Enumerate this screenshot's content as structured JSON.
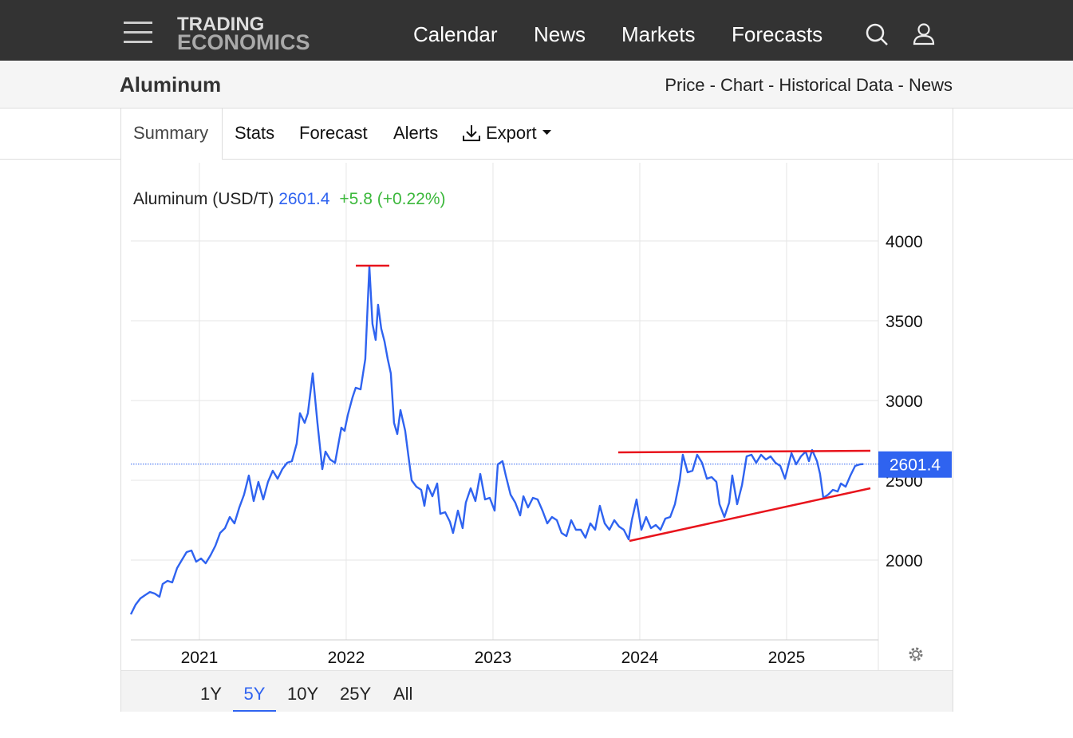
{
  "nav": {
    "logo_line1": "TRADING",
    "logo_line2": "ECONOMICS",
    "links": [
      "Calendar",
      "News",
      "Markets",
      "Forecasts"
    ]
  },
  "header": {
    "title": "Aluminum",
    "links": "Price - Chart - Historical Data - News"
  },
  "tabs": [
    "Summary",
    "Stats",
    "Forecast",
    "Alerts",
    "Export"
  ],
  "chart_data": {
    "type": "line",
    "title": "Aluminum (USD/T)",
    "change": "+5.8 (+0.22%)",
    "x": [
      2020.533,
      2020.565,
      2020.598,
      2020.63,
      2020.663,
      2020.696,
      2020.728,
      2020.75,
      2020.783,
      2020.815,
      2020.848,
      2020.88,
      2020.913,
      2020.946,
      2020.978,
      2021.011,
      2021.043,
      2021.076,
      2021.109,
      2021.141,
      2021.174,
      2021.207,
      2021.239,
      2021.272,
      2021.304,
      2021.337,
      2021.37,
      2021.402,
      2021.435,
      2021.467,
      2021.5,
      2021.533,
      2021.565,
      2021.598,
      2021.63,
      2021.663,
      2021.685,
      2021.717,
      2021.739,
      2021.772,
      2021.804,
      2021.837,
      2021.859,
      2021.891,
      2021.924,
      2021.967,
      2021.989,
      2022.011,
      2022.043,
      2022.065,
      2022.098,
      2022.13,
      2022.158,
      2022.179,
      2022.201,
      2022.217,
      2022.239,
      2022.261,
      2022.283,
      2022.304,
      2022.326,
      2022.348,
      2022.37,
      2022.402,
      2022.424,
      2022.446,
      2022.478,
      2022.511,
      2022.533,
      2022.554,
      2022.587,
      2022.62,
      2022.641,
      2022.674,
      2022.707,
      2022.728,
      2022.761,
      2022.793,
      2022.815,
      2022.848,
      2022.88,
      2022.913,
      2022.946,
      2022.978,
      2023.011,
      2023.033,
      2023.065,
      2023.087,
      2023.12,
      2023.152,
      2023.185,
      2023.207,
      2023.239,
      2023.272,
      2023.304,
      2023.337,
      2023.37,
      2023.402,
      2023.435,
      2023.467,
      2023.5,
      2023.533,
      2023.565,
      2023.598,
      2023.63,
      2023.663,
      2023.696,
      2023.728,
      2023.761,
      2023.793,
      2023.826,
      2023.859,
      2023.891,
      2023.924,
      2023.946,
      2023.978,
      2024.011,
      2024.043,
      2024.076,
      2024.109,
      2024.141,
      2024.174,
      2024.207,
      2024.239,
      2024.272,
      2024.293,
      2024.326,
      2024.359,
      2024.391,
      2024.424,
      2024.457,
      2024.489,
      2024.522,
      2024.543,
      2024.576,
      2024.609,
      2024.63,
      2024.663,
      2024.696,
      2024.728,
      2024.761,
      2024.793,
      2024.826,
      2024.859,
      2024.891,
      2024.924,
      2024.957,
      2024.989,
      2025.033,
      2025.065,
      2025.098,
      2025.13,
      2025.152,
      2025.174,
      2025.207,
      2025.228,
      2025.25,
      2025.283,
      2025.315,
      2025.348,
      2025.37,
      2025.402,
      2025.435,
      2025.467,
      2025.5,
      2025.522
    ],
    "series": [
      {
        "color": "#2f63f0",
        "values": [
          1660,
          1720,
          1760,
          1780,
          1800,
          1790,
          1770,
          1850,
          1870,
          1860,
          1950,
          2000,
          2050,
          2060,
          1990,
          2010,
          1980,
          2030,
          2090,
          2170,
          2200,
          2270,
          2230,
          2330,
          2410,
          2530,
          2370,
          2490,
          2380,
          2490,
          2560,
          2510,
          2570,
          2610,
          2620,
          2730,
          2920,
          2860,
          2920,
          3170,
          2860,
          2570,
          2680,
          2630,
          2610,
          2830,
          2810,
          2910,
          3020,
          3080,
          3070,
          3260,
          3840,
          3480,
          3380,
          3600,
          3450,
          3370,
          3260,
          3170,
          2860,
          2790,
          2940,
          2810,
          2650,
          2500,
          2460,
          2440,
          2340,
          2470,
          2400,
          2480,
          2290,
          2300,
          2240,
          2170,
          2310,
          2200,
          2360,
          2450,
          2370,
          2540,
          2380,
          2390,
          2310,
          2600,
          2620,
          2530,
          2410,
          2360,
          2280,
          2400,
          2330,
          2390,
          2380,
          2310,
          2230,
          2270,
          2250,
          2170,
          2150,
          2250,
          2190,
          2190,
          2140,
          2230,
          2190,
          2340,
          2230,
          2190,
          2250,
          2210,
          2190,
          2130,
          2250,
          2380,
          2190,
          2270,
          2200,
          2220,
          2190,
          2260,
          2270,
          2350,
          2500,
          2660,
          2550,
          2560,
          2660,
          2610,
          2510,
          2520,
          2490,
          2350,
          2270,
          2360,
          2530,
          2350,
          2470,
          2650,
          2660,
          2610,
          2660,
          2630,
          2650,
          2610,
          2590,
          2510,
          2670,
          2600,
          2650,
          2680,
          2620,
          2690,
          2620,
          2540,
          2390,
          2410,
          2440,
          2430,
          2480,
          2460,
          2530,
          2590,
          2600,
          2601.4
        ]
      }
    ],
    "xlim": [
      2020.533,
      2025.625
    ],
    "xticks": [
      2021,
      2022,
      2023,
      2024,
      2025
    ],
    "ylim": [
      1500,
      4490
    ],
    "yticks": [
      2000,
      2500,
      3000,
      3500,
      4000
    ],
    "grid": true
  },
  "ranges": [
    "1Y",
    "5Y",
    "10Y",
    "25Y",
    "All"
  ]
}
